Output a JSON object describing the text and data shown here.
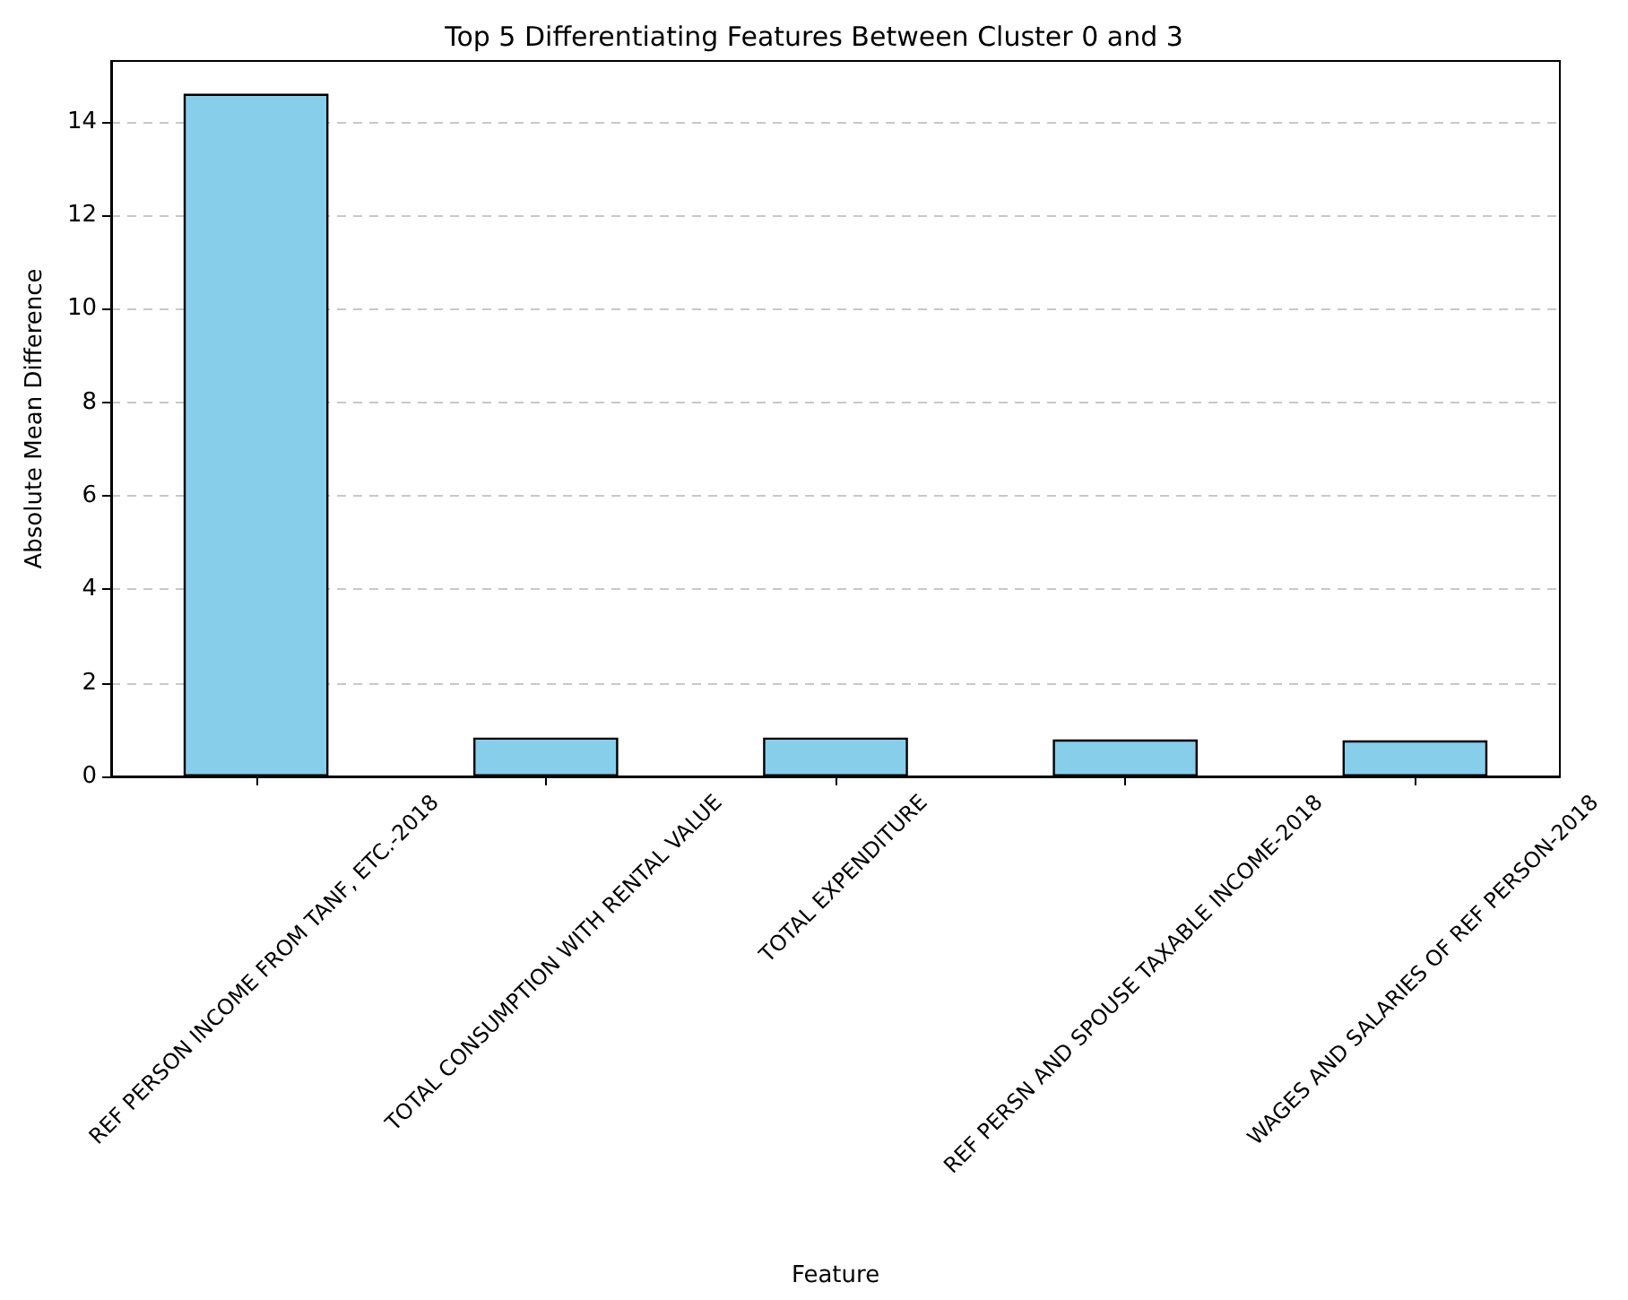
{
  "chart_data": {
    "type": "bar",
    "title": "Top 5 Differentiating Features Between Cluster 0 and 3",
    "xlabel": "Feature",
    "ylabel": "Absolute Mean Difference",
    "categories": [
      "REF PERSON INCOME FROM TANF, ETC.-2018",
      "TOTAL CONSUMPTION WITH RENTAL VALUE",
      "TOTAL EXPENDITURE",
      "REF PERSN AND SPOUSE TAXABLE INCOME-2018",
      "WAGES AND SALARIES OF REF PERSON-2018"
    ],
    "values": [
      14.6,
      0.83,
      0.83,
      0.79,
      0.77
    ],
    "color": "#87ceeb",
    "ylim": [
      0,
      15.3
    ],
    "yticks": [
      0,
      2,
      4,
      6,
      8,
      10,
      12,
      14
    ],
    "grid": "y"
  }
}
